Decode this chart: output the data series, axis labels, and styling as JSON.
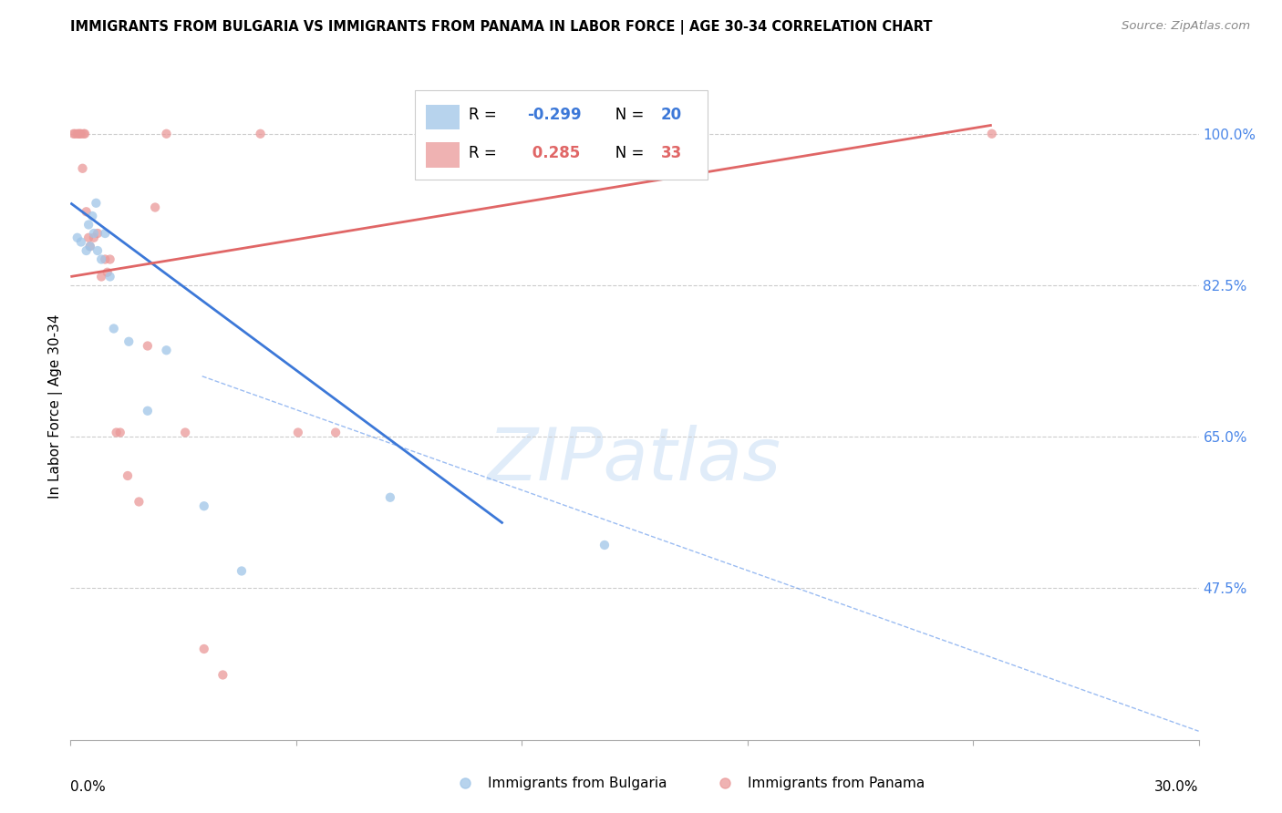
{
  "title": "IMMIGRANTS FROM BULGARIA VS IMMIGRANTS FROM PANAMA IN LABOR FORCE | AGE 30-34 CORRELATION CHART",
  "source": "Source: ZipAtlas.com",
  "ylabel": "In Labor Force | Age 30-34",
  "color_bulgaria": "#9fc5e8",
  "color_panama": "#ea9999",
  "color_trend_bulgaria": "#3c78d8",
  "color_trend_panama": "#e06666",
  "color_right_axis": "#4a86e8",
  "background_color": "#ffffff",
  "grid_color": "#cccccc",
  "xlim": [
    0.0,
    30.0
  ],
  "ylim": [
    30.0,
    107.0
  ],
  "right_yticks": [
    47.5,
    65.0,
    82.5,
    100.0
  ],
  "right_ytick_labels": [
    "47.5%",
    "65.0%",
    "82.5%",
    "100.0%"
  ],
  "legend_label_bulgaria": "Immigrants from Bulgaria",
  "legend_label_panama": "Immigrants from Panama",
  "bulgaria_x": [
    0.18,
    0.28,
    0.42,
    0.48,
    0.52,
    0.58,
    0.62,
    0.68,
    0.72,
    0.82,
    0.92,
    1.05,
    1.15,
    1.55,
    2.05,
    2.55,
    3.55,
    4.55,
    8.5,
    14.2
  ],
  "bulgaria_y": [
    88.0,
    87.5,
    86.5,
    89.5,
    87.0,
    90.5,
    88.5,
    92.0,
    86.5,
    85.5,
    88.5,
    83.5,
    77.5,
    76.0,
    68.0,
    75.0,
    57.0,
    49.5,
    58.0,
    52.5
  ],
  "panama_x": [
    0.08,
    0.12,
    0.18,
    0.22,
    0.25,
    0.28,
    0.32,
    0.35,
    0.38,
    0.42,
    0.48,
    0.52,
    0.62,
    0.72,
    0.82,
    0.92,
    0.98,
    1.05,
    1.22,
    1.32,
    1.52,
    1.82,
    2.05,
    2.25,
    2.55,
    3.05,
    3.55,
    4.05,
    5.05,
    6.05,
    7.05,
    14.2,
    24.5
  ],
  "panama_y": [
    100.0,
    100.0,
    100.0,
    100.0,
    100.0,
    100.0,
    96.0,
    100.0,
    100.0,
    91.0,
    88.0,
    87.0,
    88.0,
    88.5,
    83.5,
    85.5,
    84.0,
    85.5,
    65.5,
    65.5,
    60.5,
    57.5,
    75.5,
    91.5,
    100.0,
    65.5,
    40.5,
    37.5,
    100.0,
    65.5,
    65.5,
    100.0,
    100.0
  ],
  "bulgaria_trend_x": [
    0.0,
    11.5
  ],
  "bulgaria_trend_y": [
    92.0,
    55.0
  ],
  "panama_trend_x": [
    0.0,
    24.5
  ],
  "panama_trend_y": [
    83.5,
    101.0
  ],
  "dashed_trend_x": [
    3.5,
    30.0
  ],
  "dashed_trend_y": [
    72.0,
    31.0
  ]
}
